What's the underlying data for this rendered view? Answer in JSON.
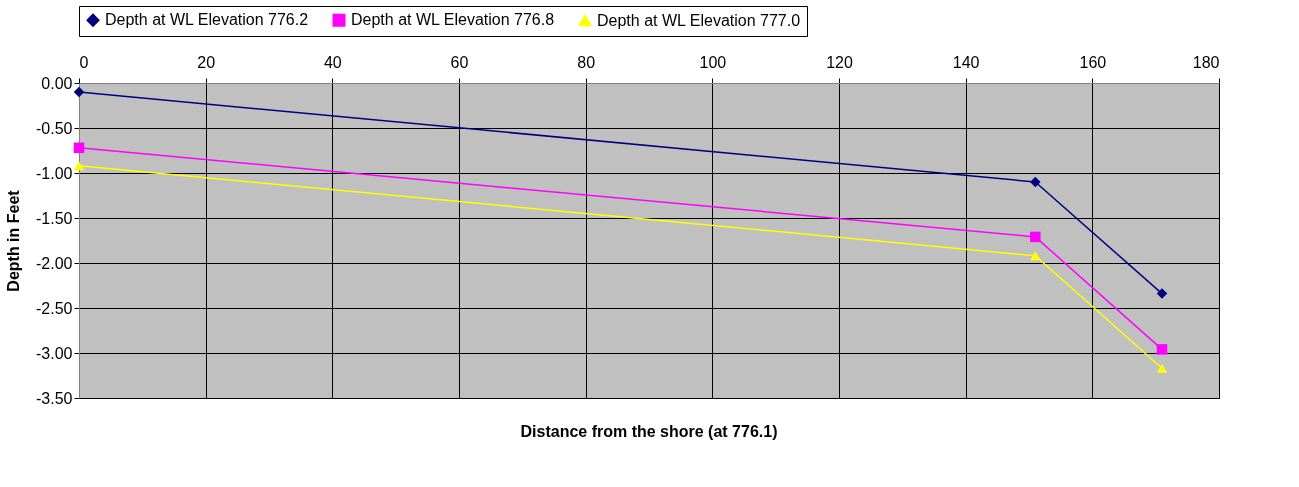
{
  "chart_data": {
    "type": "line",
    "xlabel": "Distance from the shore (at 776.1)",
    "ylabel": "Depth in Feet",
    "x": [
      0,
      151,
      171
    ],
    "series": [
      {
        "name": "Depth at WL Elevation 776.2",
        "color": "#000080",
        "marker": "diamond",
        "values": [
          -0.1,
          -1.1,
          -2.34
        ]
      },
      {
        "name": "Depth at WL Elevation 776.8",
        "color": "#ff00ff",
        "marker": "square",
        "values": [
          -0.72,
          -1.71,
          -2.96
        ]
      },
      {
        "name": "Depth at WL Elevation 777.0",
        "color": "#ffff00",
        "marker": "triangle",
        "values": [
          -0.92,
          -1.92,
          -3.17
        ]
      }
    ],
    "xlim": [
      0,
      180
    ],
    "xticks": [
      0,
      20,
      40,
      60,
      80,
      100,
      120,
      140,
      160,
      180
    ],
    "ylim": [
      -3.5,
      0
    ],
    "yticks": [
      {
        "value": 0,
        "label": "0.00"
      },
      {
        "value": -0.5,
        "label": "-0.50"
      },
      {
        "value": -1,
        "label": "-1.00"
      },
      {
        "value": -1.5,
        "label": "-1.50"
      },
      {
        "value": -2,
        "label": "-2.00"
      },
      {
        "value": -2.5,
        "label": "-2.50"
      },
      {
        "value": -3,
        "label": "-3.00"
      },
      {
        "value": -3.5,
        "label": "-3.50"
      }
    ],
    "grid": true,
    "legend": "top",
    "line_style": "solid"
  }
}
